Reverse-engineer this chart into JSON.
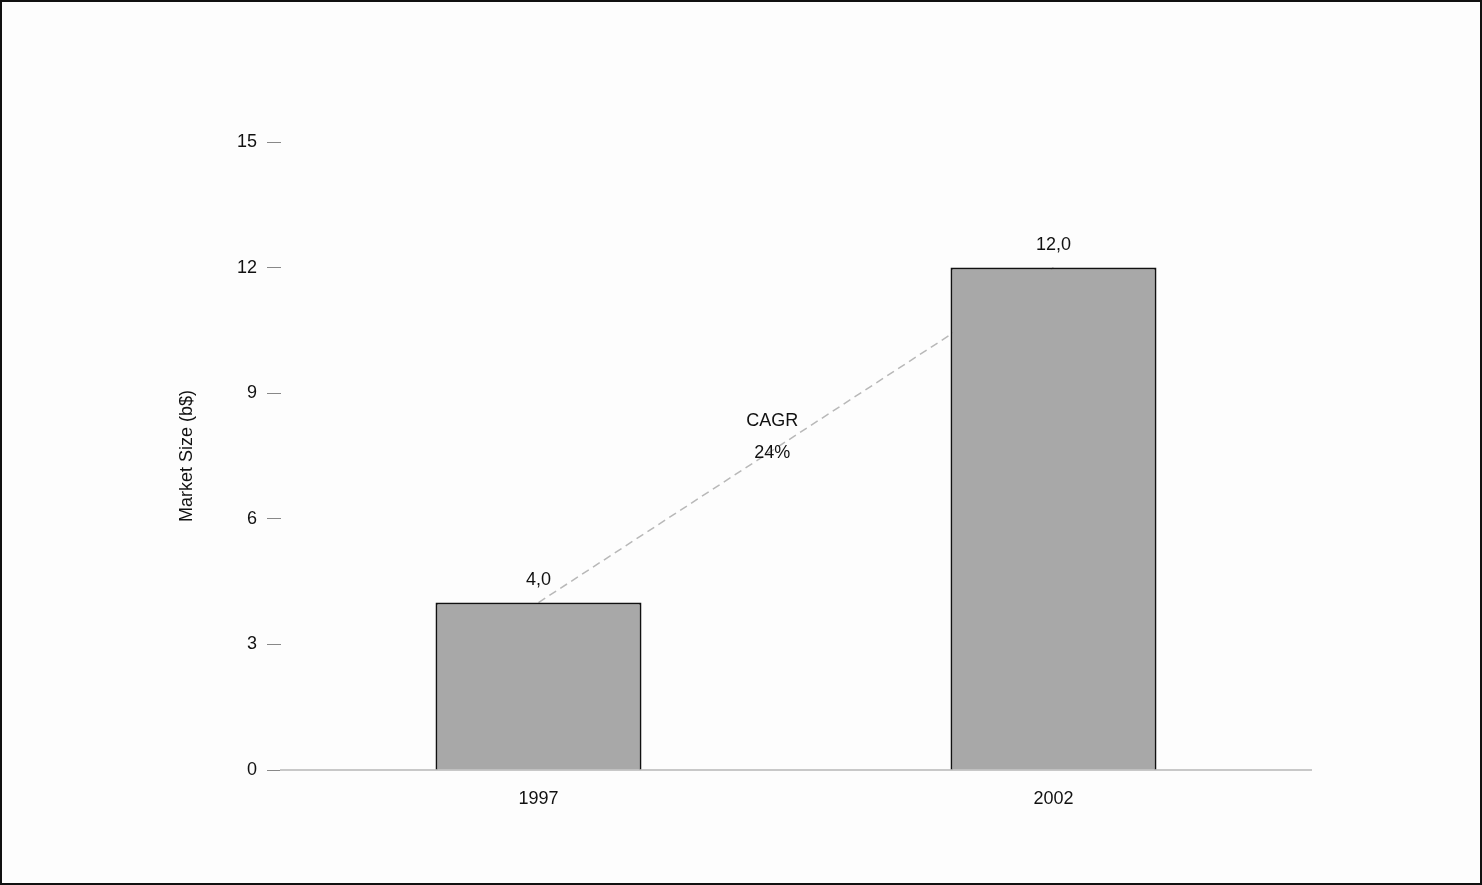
{
  "chart_data": {
    "type": "bar",
    "ylabel": "Market Size (b$)",
    "categories": [
      "1997",
      "2002"
    ],
    "series": [
      {
        "color": "#a8a8a8",
        "values": [
          4,
          12
        ],
        "value_labels": [
          "4,0",
          "12,0"
        ]
      },
      {
        "type": "line",
        "color": "#b8b8b8",
        "values": [
          4,
          12
        ],
        "marker": "none",
        "line_style": "dashed"
      }
    ],
    "ylim": [
      0,
      15
    ],
    "yticks": [
      0,
      3,
      6,
      9,
      12,
      15
    ],
    "grid": false,
    "legend": false,
    "annotations": [
      "CAGR 24%"
    ]
  }
}
